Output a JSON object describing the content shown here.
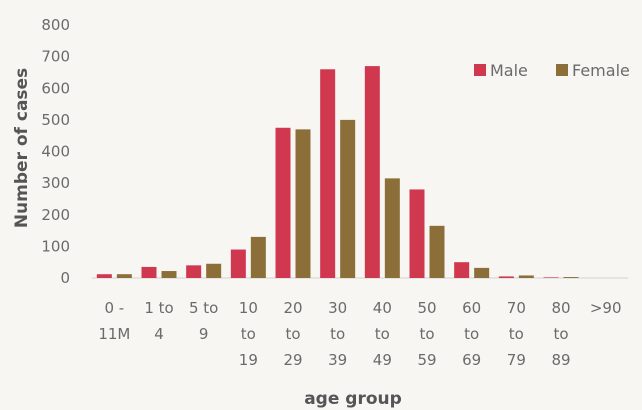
{
  "chart_data": {
    "type": "bar",
    "title": "",
    "xlabel": "age group",
    "ylabel": "Number of cases",
    "ylim": [
      0,
      800
    ],
    "yticks": [
      0,
      100,
      200,
      300,
      400,
      500,
      600,
      700,
      800
    ],
    "grid": false,
    "legend_position": "top-right",
    "categories": [
      [
        "0 -",
        "11M"
      ],
      [
        "1 to",
        "4"
      ],
      [
        "5 to",
        "9"
      ],
      [
        "10",
        "to",
        "19"
      ],
      [
        "20",
        "to",
        "29"
      ],
      [
        "30",
        "to",
        "39"
      ],
      [
        "40",
        "to",
        "49"
      ],
      [
        "50",
        "to",
        "59"
      ],
      [
        "60",
        "to",
        "69"
      ],
      [
        "70",
        "to",
        "79"
      ],
      [
        "80",
        "to",
        "89"
      ],
      [
        ">90"
      ]
    ],
    "series": [
      {
        "name": "Male",
        "color": "#d0384f",
        "values": [
          12,
          35,
          40,
          90,
          475,
          660,
          670,
          280,
          50,
          5,
          2,
          0
        ]
      },
      {
        "name": "Female",
        "color": "#8c6f38",
        "values": [
          12,
          22,
          45,
          130,
          470,
          500,
          315,
          165,
          32,
          8,
          3,
          0
        ]
      }
    ]
  }
}
